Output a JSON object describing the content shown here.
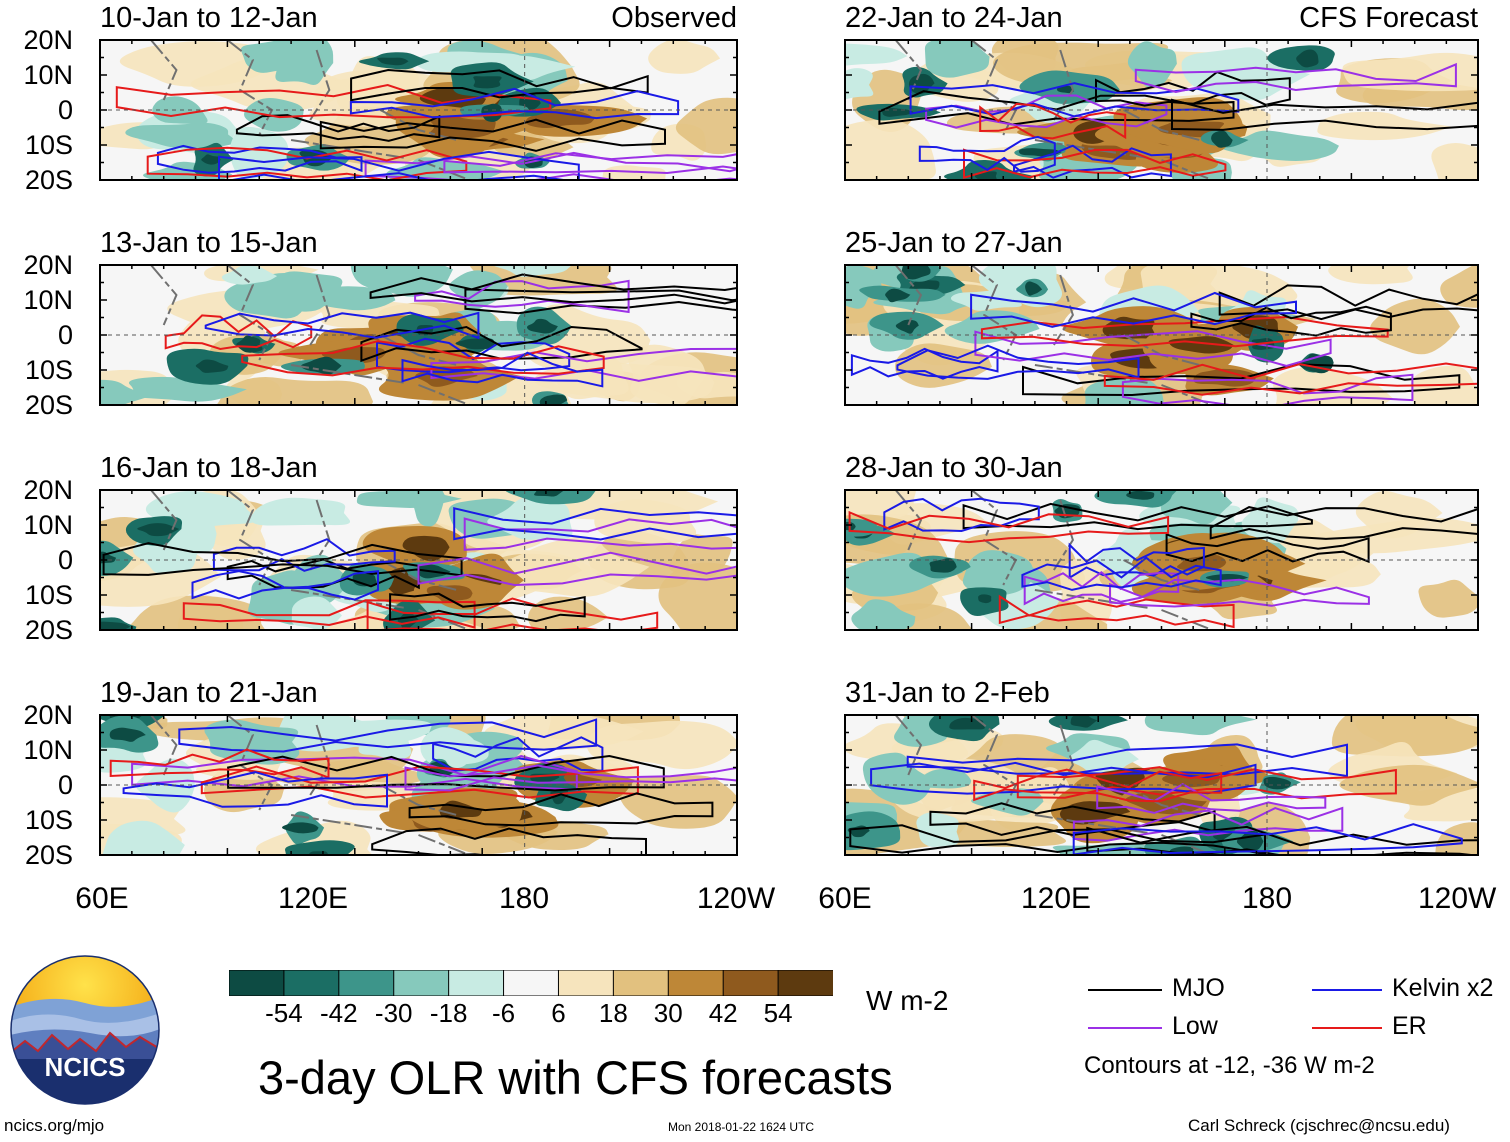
{
  "panels": [
    {
      "title": "10-Jan to 12-Jan",
      "tag": "Observed",
      "seed": 1
    },
    {
      "title": "22-Jan to 24-Jan",
      "tag": "CFS Forecast",
      "seed": 5
    },
    {
      "title": "13-Jan to 15-Jan",
      "tag": "",
      "seed": 2
    },
    {
      "title": "25-Jan to 27-Jan",
      "tag": "",
      "seed": 6
    },
    {
      "title": "16-Jan to 18-Jan",
      "tag": "",
      "seed": 3
    },
    {
      "title": "28-Jan to 30-Jan",
      "tag": "",
      "seed": 7
    },
    {
      "title": "19-Jan to 21-Jan",
      "tag": "",
      "seed": 4
    },
    {
      "title": "31-Jan to 2-Feb",
      "tag": "",
      "seed": 8
    }
  ],
  "lat_labels": [
    "20N",
    "10N",
    "0",
    "10S",
    "20S"
  ],
  "lon_labels": [
    "60E",
    "120E",
    "180",
    "120W"
  ],
  "colorbar": {
    "colors": [
      "#0d4b43",
      "#1b6e64",
      "#3d958a",
      "#86c9bc",
      "#c8ebe3",
      "#f6f6f6",
      "#f6e4bd",
      "#e2c17f",
      "#be8737",
      "#8f5a1e",
      "#5d3a0f"
    ],
    "labels": [
      "-54",
      "-42",
      "-30",
      "-18",
      "-6",
      "6",
      "18",
      "30",
      "42",
      "54"
    ],
    "units": "W m-2"
  },
  "legend": [
    {
      "name": "MJO",
      "color": "#000000"
    },
    {
      "name": "Kelvin x2",
      "color": "#1a1ae6"
    },
    {
      "name": "Low",
      "color": "#9b30e6"
    },
    {
      "name": "ER",
      "color": "#e61a1a"
    }
  ],
  "contour_note": "Contours at -12, -36 W m-2",
  "main_title": "3-day OLR with CFS forecasts",
  "logo_text": "NCICS",
  "footer": {
    "left": "ncics.org/mjo",
    "center": "Mon 2018-01-22 1624 UTC",
    "right": "Carl Schreck (cjschrec@ncsu.edu)"
  }
}
